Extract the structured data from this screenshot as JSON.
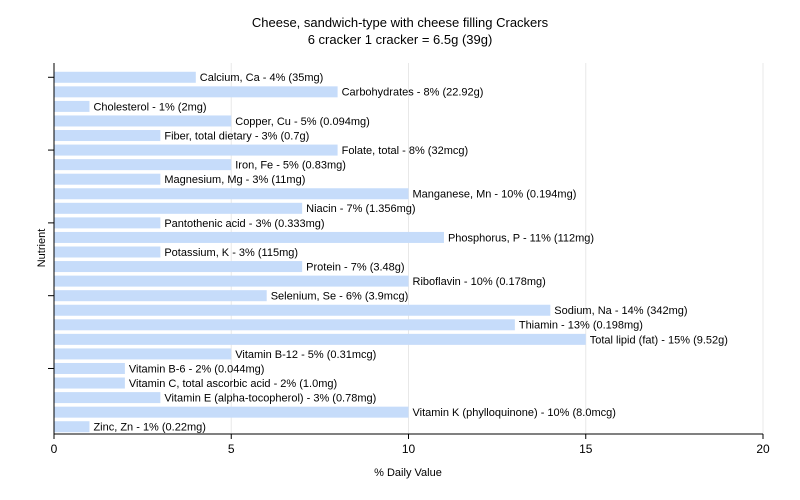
{
  "chart_data": {
    "type": "bar",
    "orientation": "horizontal",
    "title": "Cheese, sandwich-type with cheese filling Crackers",
    "subtitle": "6 cracker 1 cracker = 6.5g (39g)",
    "xlabel": "% Daily Value",
    "ylabel": "Nutrient",
    "xlim": [
      0,
      20
    ],
    "xticks": [
      0,
      5,
      10,
      15,
      20
    ],
    "grid": true,
    "bar_color": "#c6dcfa",
    "series": [
      {
        "values": [
          4,
          8,
          1,
          5,
          3,
          8,
          5,
          3,
          10,
          7,
          3,
          11,
          3,
          7,
          10,
          6,
          14,
          13,
          15,
          5,
          2,
          2,
          3,
          10,
          1
        ]
      }
    ],
    "categories": [
      "Calcium, Ca",
      "Carbohydrates",
      "Cholesterol",
      "Copper, Cu",
      "Fiber, total dietary",
      "Folate, total",
      "Iron, Fe",
      "Magnesium, Mg",
      "Manganese, Mn",
      "Niacin",
      "Pantothenic acid",
      "Phosphorus, P",
      "Potassium, K",
      "Protein",
      "Riboflavin",
      "Selenium, Se",
      "Sodium, Na",
      "Thiamin",
      "Total lipid (fat)",
      "Vitamin B-12",
      "Vitamin B-6",
      "Vitamin C, total ascorbic acid",
      "Vitamin E (alpha-tocopherol)",
      "Vitamin K (phylloquinone)",
      "Zinc, Zn"
    ],
    "labels": [
      "Calcium, Ca - 4% (35mg)",
      "Carbohydrates - 8% (22.92g)",
      "Cholesterol - 1% (2mg)",
      "Copper, Cu - 5% (0.094mg)",
      "Fiber, total dietary - 3% (0.7g)",
      "Folate, total - 8% (32mcg)",
      "Iron, Fe - 5% (0.83mg)",
      "Magnesium, Mg - 3% (11mg)",
      "Manganese, Mn - 10% (0.194mg)",
      "Niacin - 7% (1.356mg)",
      "Pantothenic acid - 3% (0.333mg)",
      "Phosphorus, P - 11% (112mg)",
      "Potassium, K - 3% (115mg)",
      "Protein - 7% (3.48g)",
      "Riboflavin - 10% (0.178mg)",
      "Selenium, Se - 6% (3.9mcg)",
      "Sodium, Na - 14% (342mg)",
      "Thiamin - 13% (0.198mg)",
      "Total lipid (fat) - 15% (9.52g)",
      "Vitamin B-12 - 5% (0.31mcg)",
      "Vitamin B-6 - 2% (0.044mg)",
      "Vitamin C, total ascorbic acid - 2% (1.0mg)",
      "Vitamin E (alpha-tocopherol) - 3% (0.78mg)",
      "Vitamin K (phylloquinone) - 10% (8.0mcg)",
      "Zinc, Zn - 1% (0.22mg)"
    ]
  }
}
